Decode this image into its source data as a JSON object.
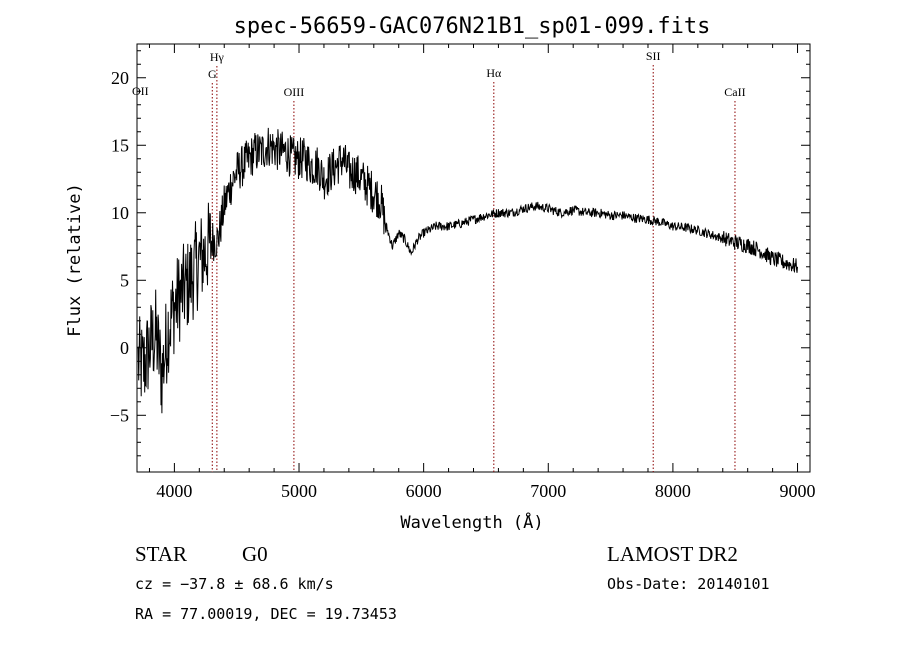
{
  "chart_data": {
    "type": "line",
    "title": "spec-56659-GAC076N21B1_sp01-099.fits",
    "xlabel": "Wavelength (Å)",
    "ylabel": "Flux (relative)",
    "xlim": [
      3700,
      9100
    ],
    "ylim": [
      -9.2,
      22.5
    ],
    "x_ticks": [
      4000,
      5000,
      6000,
      7000,
      8000,
      9000
    ],
    "y_ticks": [
      -5,
      0,
      5,
      10,
      15,
      20
    ],
    "grid": false,
    "line_color": "#000000",
    "marker_color": "#8b0000",
    "spectral_lines": [
      {
        "label": "OII",
        "wavelength": 3727
      },
      {
        "label": "G",
        "wavelength": 4304
      },
      {
        "label": "Hγ",
        "wavelength": 4341
      },
      {
        "label": "OIII",
        "wavelength": 4959
      },
      {
        "label": "Hα",
        "wavelength": 6563
      },
      {
        "label": "SII",
        "wavelength": 7842
      },
      {
        "label": "CaII",
        "wavelength": 8498
      }
    ],
    "series": [
      {
        "x": [
          3710,
          3750,
          3800,
          3850,
          3900,
          3950,
          4000,
          4050,
          4100,
          4150,
          4200,
          4250,
          4300,
          4350,
          4400,
          4450,
          4500,
          4550,
          4600,
          4650,
          4700,
          4750,
          4800,
          4850,
          4900,
          4950,
          5000,
          5050,
          5100,
          5150,
          5200,
          5250,
          5300,
          5350,
          5400,
          5450,
          5500,
          5550,
          5600,
          5650,
          5700,
          5750,
          5800,
          5850,
          5900,
          5950,
          6000,
          6100,
          6200,
          6300,
          6400,
          6500,
          6600,
          6700,
          6800,
          6900,
          7000,
          7100,
          7200,
          7300,
          7400,
          7500,
          7600,
          7700,
          7800,
          7900,
          8000,
          8100,
          8200,
          8300,
          8400,
          8500,
          8600,
          8700,
          8800,
          8900,
          9000
        ],
        "values": [
          -1.0,
          -1.5,
          0.0,
          1.0,
          -2.0,
          1.5,
          3.0,
          4.0,
          4.5,
          5.5,
          6.5,
          7.0,
          8.0,
          8.0,
          10.5,
          12.0,
          13.0,
          13.5,
          14.0,
          14.5,
          14.5,
          15.0,
          14.8,
          14.5,
          14.5,
          14.0,
          14.0,
          14.0,
          13.5,
          13.5,
          12.5,
          13.0,
          13.5,
          14.0,
          13.0,
          13.0,
          12.5,
          12.0,
          11.5,
          11.0,
          9.0,
          7.5,
          8.5,
          8.0,
          7.0,
          8.0,
          8.5,
          9.0,
          9.0,
          9.2,
          9.5,
          9.8,
          10.0,
          10.0,
          10.3,
          10.5,
          10.3,
          10.0,
          10.2,
          10.0,
          10.0,
          9.8,
          9.8,
          9.6,
          9.5,
          9.3,
          9.0,
          8.9,
          8.7,
          8.4,
          8.1,
          7.8,
          7.6,
          7.2,
          6.6,
          6.3,
          6.0
        ]
      }
    ]
  },
  "info": {
    "obj_class": "STAR",
    "subclass": "G0",
    "survey": "LAMOST DR2",
    "cz": "cz = −37.8 ± 68.6 km/s",
    "obs_date": "Obs-Date: 20140101",
    "coords": "RA =  77.00019, DEC =  19.73453"
  }
}
